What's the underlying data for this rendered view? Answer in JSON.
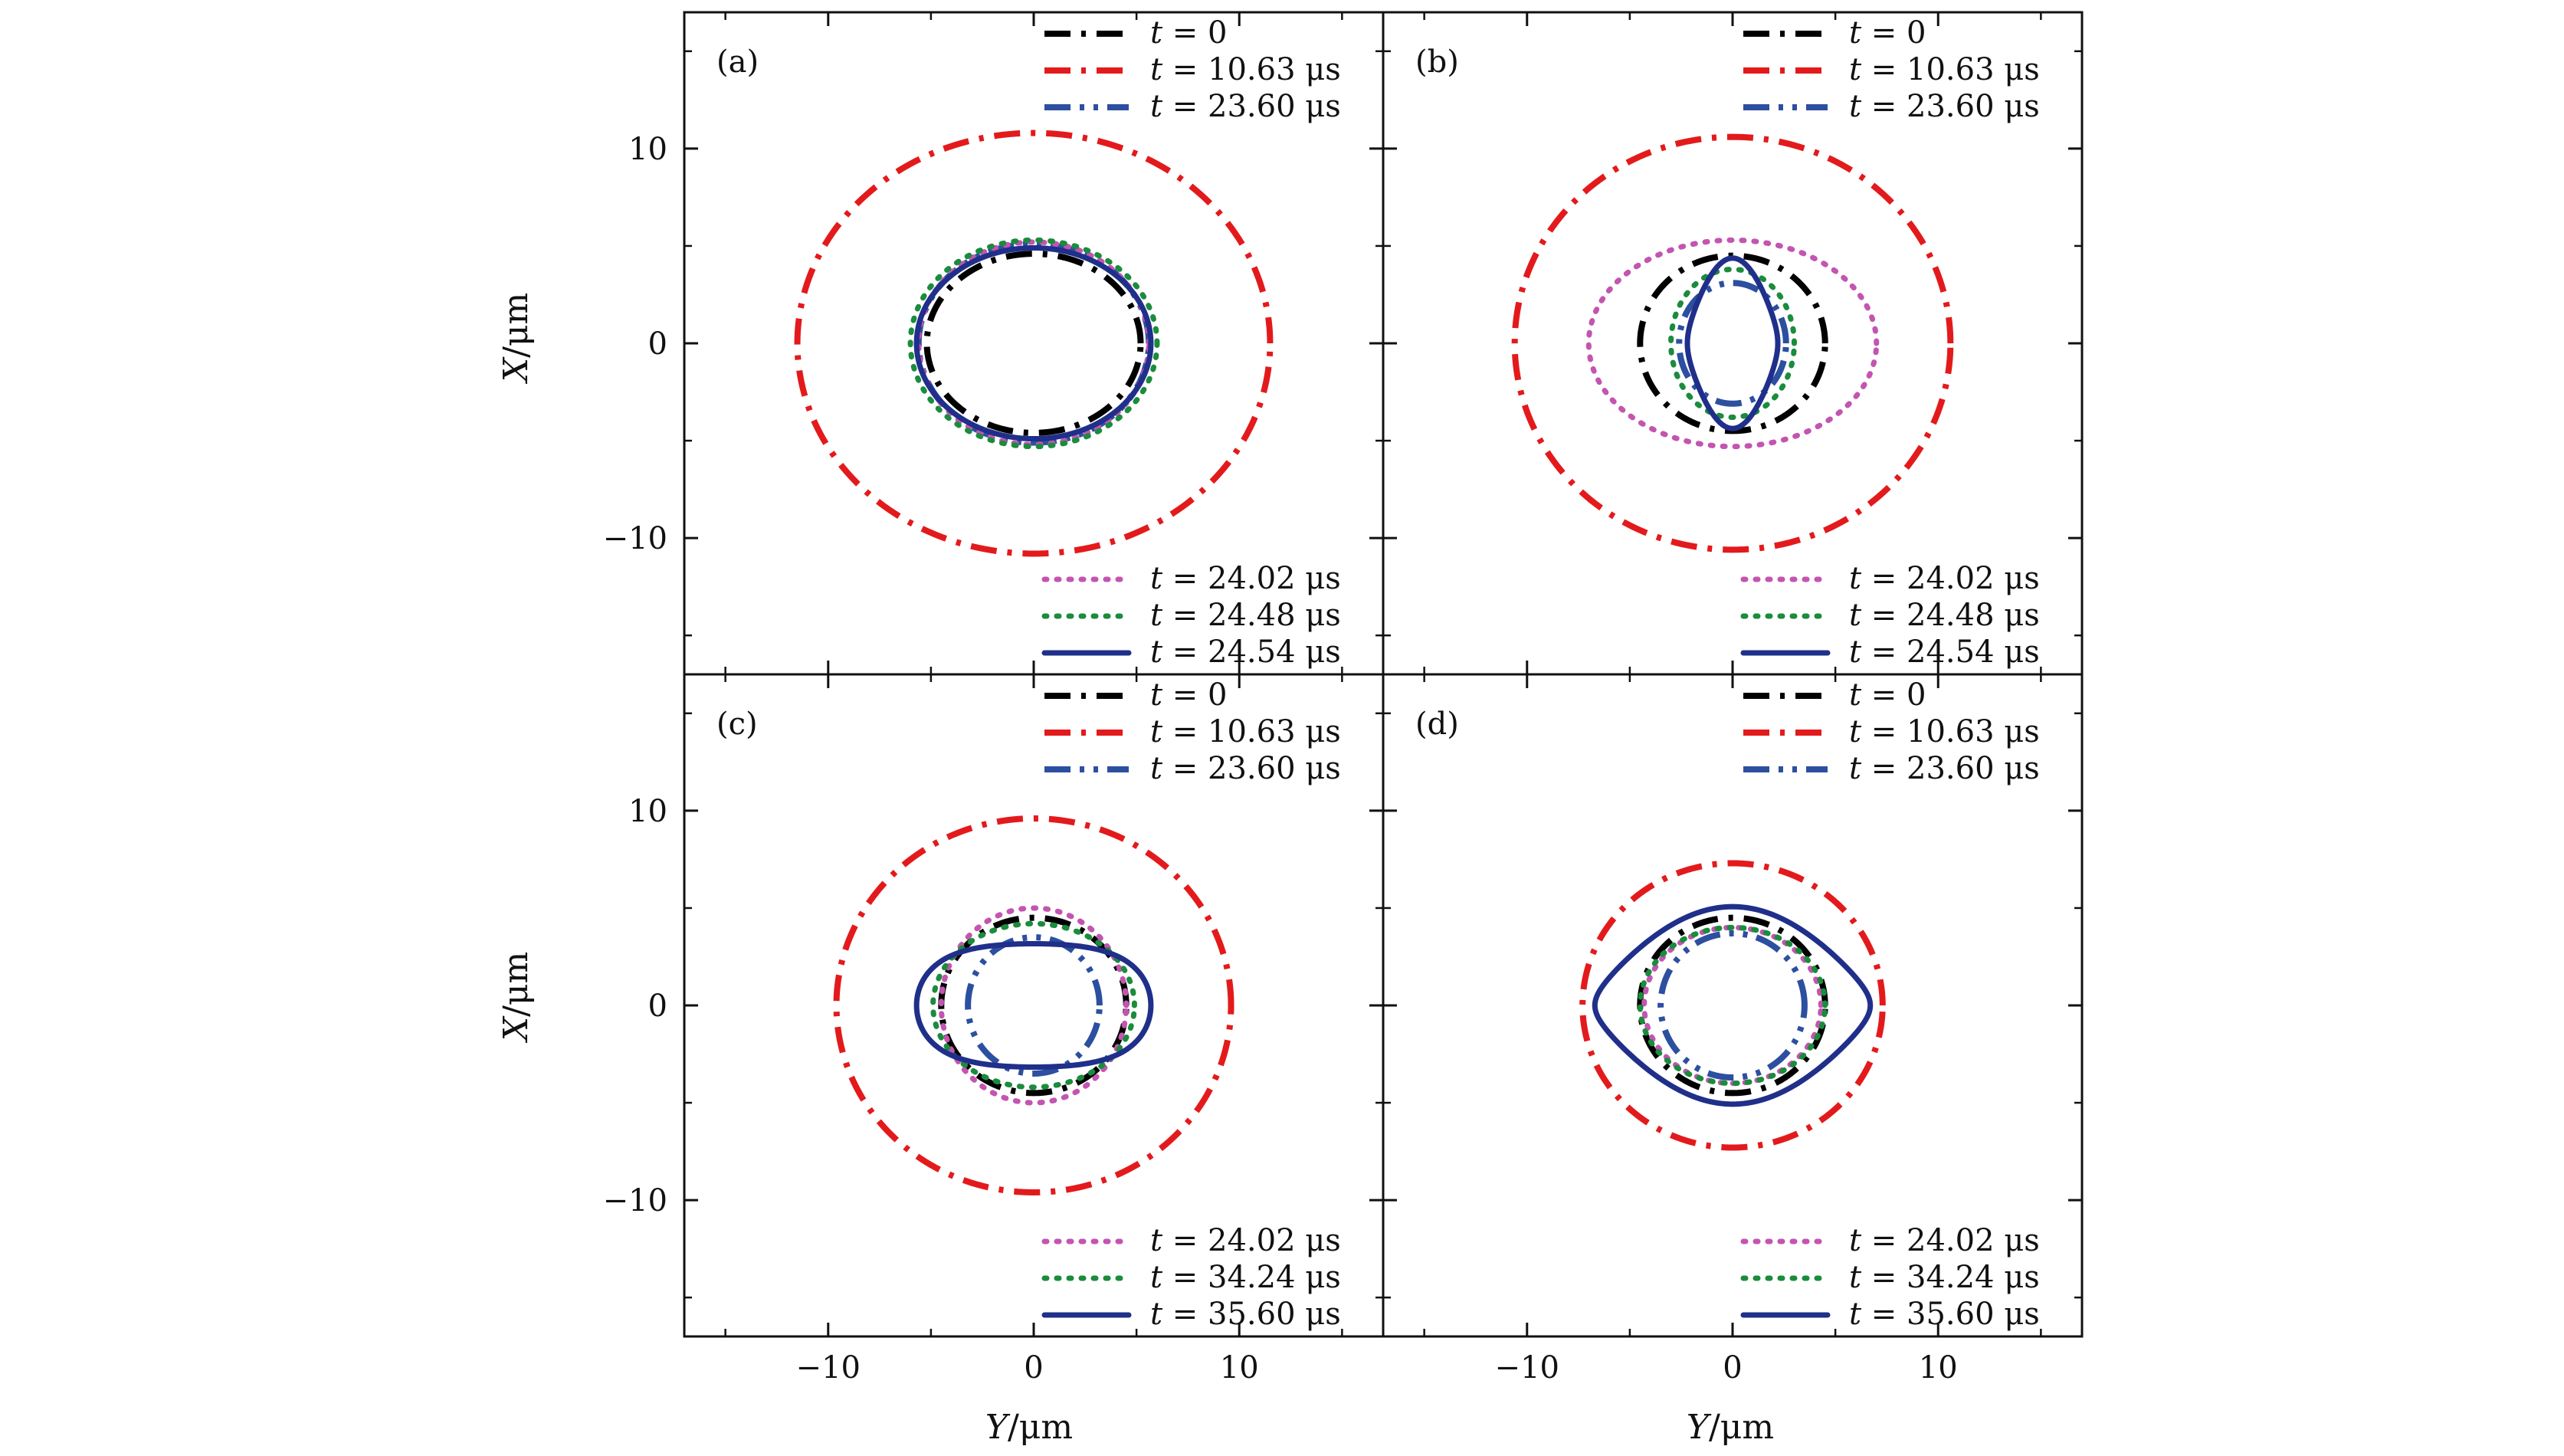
{
  "chart_data": {
    "type": "line",
    "x_axis": {
      "label": "Y/μm",
      "range": [
        -17,
        17
      ],
      "ticks": [
        -10,
        0,
        10
      ],
      "tick_labels": [
        "−10",
        "0",
        "10"
      ]
    },
    "y_axis": {
      "label": "X/μm",
      "range": [
        -17,
        17
      ],
      "ticks": [
        -10,
        0,
        10
      ],
      "tick_labels": [
        "−10",
        "0",
        "10"
      ]
    },
    "styles": {
      "t0": {
        "color": "#000000",
        "dash": "dashdot"
      },
      "t1": {
        "color": "#e31a1c",
        "dash": "dashdot"
      },
      "t2": {
        "color": "#2c4fa0",
        "dash": "dashdotdot"
      },
      "t3": {
        "color": "#c355b0",
        "dash": "dotted"
      },
      "t4": {
        "color": "#1a8c3c",
        "dash": "dotted"
      },
      "t5": {
        "color": "#1f2f8a",
        "dash": "solid"
      }
    },
    "panels": [
      {
        "label": "(a)",
        "legend_top": [
          "t = 0",
          "t = 10.63 μs",
          "t = 23.60 μs"
        ],
        "legend_bottom": [
          "t = 24.02 μs",
          "t = 24.48 μs",
          "t = 24.54 μs"
        ],
        "series": [
          {
            "name": "t = 0",
            "style": "t0",
            "a": 5.2,
            "b": 4.6,
            "c": 0
          },
          {
            "name": "t = 10.63 μs",
            "style": "t1",
            "a": 11.5,
            "b": 10.8,
            "c": 0
          },
          {
            "name": "t = 23.60 μs",
            "style": "t2",
            "a": 5.6,
            "b": 5.1,
            "c": 0
          },
          {
            "name": "t = 24.02 μs",
            "style": "t3",
            "a": 5.6,
            "b": 5.2,
            "c": 0
          },
          {
            "name": "t = 24.48 μs",
            "style": "t4",
            "a": 6.0,
            "b": 5.3,
            "c": 0
          },
          {
            "name": "t = 24.54 μs",
            "style": "t5",
            "a": 5.7,
            "b": 4.9,
            "c": 0
          }
        ]
      },
      {
        "label": "(b)",
        "legend_top": [
          "t = 0",
          "t = 10.63 μs",
          "t = 23.60 μs"
        ],
        "legend_bottom": [
          "t = 24.02 μs",
          "t = 24.48 μs",
          "t = 24.54 μs"
        ],
        "series": [
          {
            "name": "t = 0",
            "style": "t0",
            "a": 4.5,
            "b": 4.5,
            "c": 0
          },
          {
            "name": "t = 10.63 μs",
            "style": "t1",
            "a": 10.6,
            "b": 10.6,
            "c": 0
          },
          {
            "name": "t = 23.60 μs",
            "style": "t2",
            "a": 2.6,
            "b": 3.1,
            "c": 0
          },
          {
            "name": "t = 24.02 μs",
            "style": "t3",
            "a": 7.0,
            "b": 5.3,
            "c": 0
          },
          {
            "name": "t = 24.48 μs",
            "style": "t4",
            "a": 3.0,
            "b": 3.8,
            "c": 0
          },
          {
            "name": "t = 24.54 μs",
            "style": "t5",
            "a": 2.2,
            "b": 3.5,
            "c": -0.25
          }
        ]
      },
      {
        "label": "(c)",
        "legend_top": [
          "t = 0",
          "t = 10.63 μs",
          "t = 23.60 μs"
        ],
        "legend_bottom": [
          "t = 24.02 μs",
          "t = 34.24 μs",
          "t = 35.60 μs"
        ],
        "series": [
          {
            "name": "t = 0",
            "style": "t0",
            "a": 4.5,
            "b": 4.5,
            "c": 0
          },
          {
            "name": "t = 10.63 μs",
            "style": "t1",
            "a": 9.6,
            "b": 9.6,
            "c": 0
          },
          {
            "name": "t = 23.60 μs",
            "style": "t2",
            "a": 3.2,
            "b": 3.5,
            "c": 0
          },
          {
            "name": "t = 24.02 μs",
            "style": "t3",
            "a": 4.5,
            "b": 5.0,
            "c": 0
          },
          {
            "name": "t = 34.24 μs",
            "style": "t4",
            "a": 4.9,
            "b": 4.2,
            "c": 0
          },
          {
            "name": "t = 35.60 μs",
            "style": "t5",
            "a": 5.7,
            "b": 3.6,
            "c": 0.12
          }
        ]
      },
      {
        "label": "(d)",
        "legend_top": [
          "t = 0",
          "t = 10.63 μs",
          "t = 23.60 μs"
        ],
        "legend_bottom": [
          "t = 24.02 μs",
          "t = 34.24 μs",
          "t = 35.60 μs"
        ],
        "series": [
          {
            "name": "t = 0",
            "style": "t0",
            "a": 4.5,
            "b": 4.5,
            "c": 0
          },
          {
            "name": "t = 10.63 μs",
            "style": "t1",
            "a": 7.3,
            "b": 7.3,
            "c": 0
          },
          {
            "name": "t = 23.60 μs",
            "style": "t2",
            "a": 3.5,
            "b": 3.7,
            "c": 0
          },
          {
            "name": "t = 24.02 μs",
            "style": "t3",
            "a": 4.3,
            "b": 4.0,
            "c": 0
          },
          {
            "name": "t = 34.24 μs",
            "style": "t4",
            "a": 4.5,
            "b": 4.0,
            "c": 0
          },
          {
            "name": "t = 35.60 μs",
            "style": "t5",
            "a": 6.7,
            "b": 3.9,
            "c": -0.3
          }
        ]
      }
    ]
  }
}
